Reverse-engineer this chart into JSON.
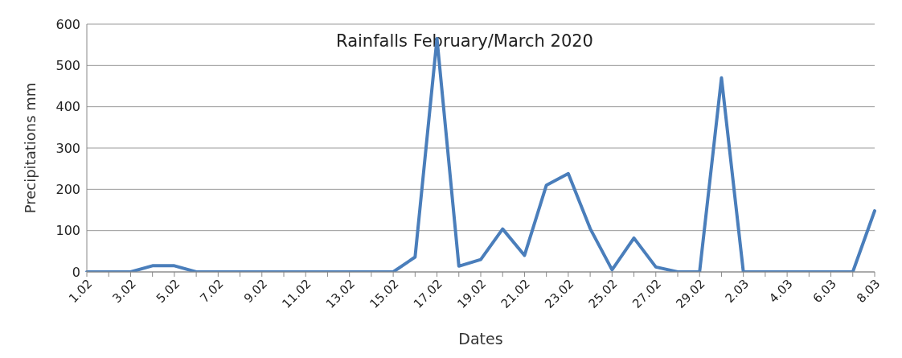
{
  "chart_data": {
    "type": "line",
    "title": "Rainfalls February/March 2020",
    "xlabel": "Dates",
    "ylabel": "Precipitations mm",
    "categories": [
      "1.02",
      null,
      "3.02",
      null,
      "5.02",
      null,
      "7.02",
      null,
      "9.02",
      null,
      "11.02",
      null,
      "13.02",
      null,
      "15.02",
      null,
      "17.02",
      null,
      "19.02",
      null,
      "21.02",
      null,
      "23.02",
      null,
      "25.02",
      null,
      "27.02",
      null,
      "29.02",
      null,
      "2.03",
      null,
      "4.03",
      null,
      "6.03",
      null,
      "8.03"
    ],
    "series": [
      {
        "color": "#4a7ebb",
        "values": [
          0,
          0,
          0,
          15,
          15,
          0,
          0,
          0,
          0,
          0,
          0,
          0,
          0,
          0,
          0,
          36,
          565,
          14,
          30,
          104,
          40,
          210,
          238,
          105,
          5,
          82,
          12,
          0,
          0,
          470,
          0,
          0,
          0,
          0,
          0,
          0,
          148
        ]
      }
    ],
    "ylim": [
      0,
      600
    ],
    "yticks": [
      0,
      100,
      200,
      300,
      400,
      500,
      600
    ],
    "grid": "y",
    "marker": "none",
    "line_style": "solid"
  }
}
